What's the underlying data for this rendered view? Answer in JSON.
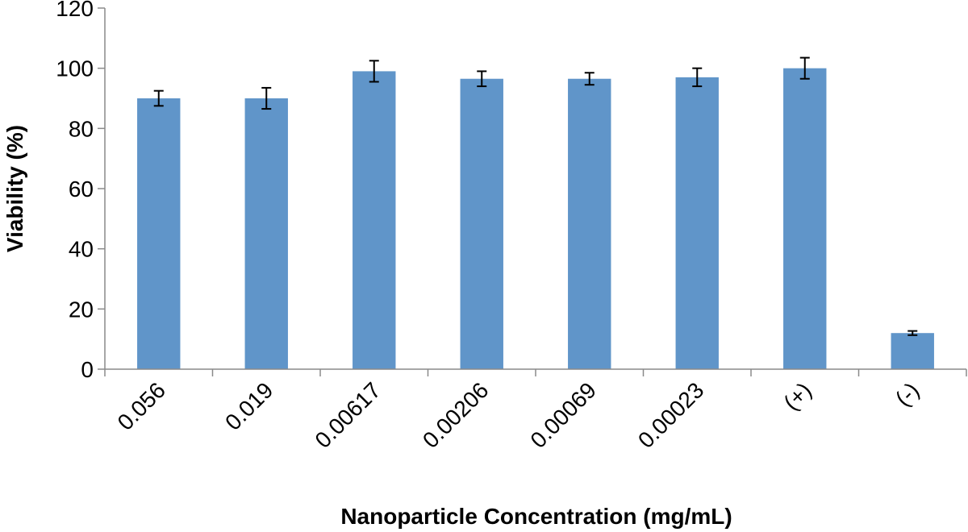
{
  "chart_data": {
    "type": "bar",
    "title": "",
    "xlabel": "Nanoparticle Concentration (mg/mL)",
    "ylabel": "Viability (%)",
    "ylim": [
      0,
      120
    ],
    "yticks": [
      0,
      20,
      40,
      60,
      80,
      100,
      120
    ],
    "categories": [
      "0.056",
      "0.019",
      "0.00617",
      "0.00206",
      "0.00069",
      "0.00023",
      "(+)",
      "(-)"
    ],
    "series": [
      {
        "values": [
          90,
          90,
          99,
          96.5,
          96.5,
          97,
          100,
          12
        ],
        "errors": [
          2.5,
          3.5,
          3.5,
          2.5,
          2,
          3,
          3.5,
          0.7
        ],
        "color": "#6095C9"
      }
    ],
    "grid": false,
    "legend": "none"
  }
}
